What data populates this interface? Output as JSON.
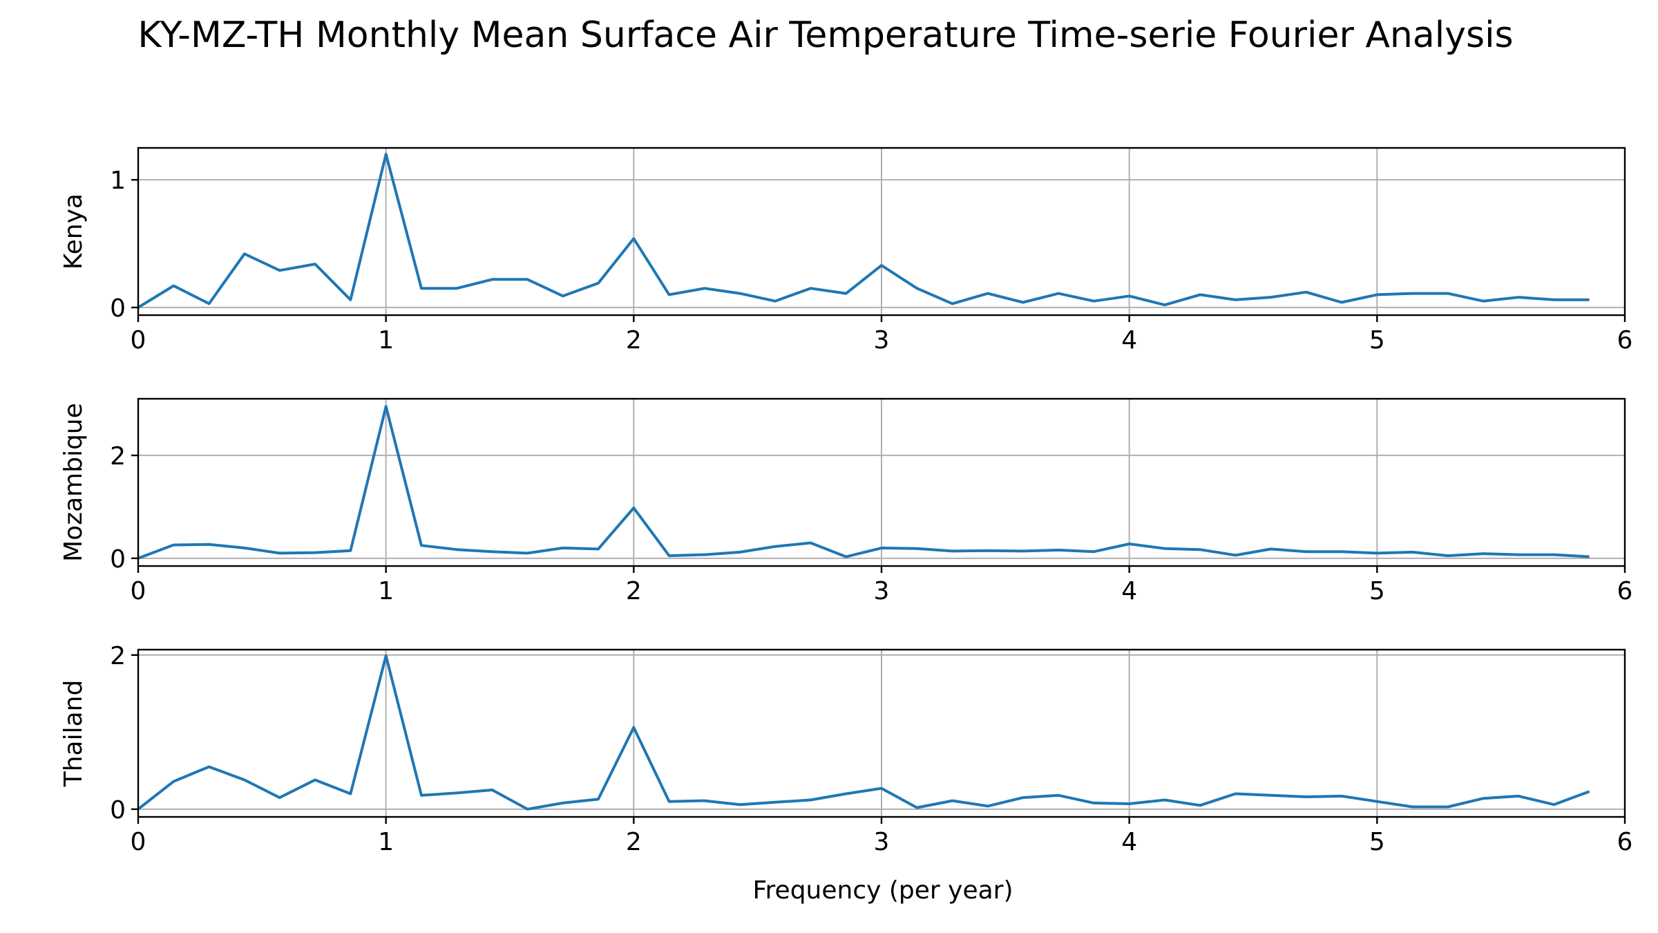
{
  "title": "KY-MZ-TH Monthly Mean Surface Air Temperature Time-serie Fourier Analysis",
  "xlabel": "Frequency (per year)",
  "colors": {
    "line": "#1f77b4",
    "grid": "#b0b0b0",
    "axes": "#000000"
  },
  "chart_data": [
    {
      "type": "line",
      "ylabel": "Kenya",
      "xlim": [
        0,
        6
      ],
      "ylim": [
        -0.06,
        1.25
      ],
      "xticks": [
        0,
        1,
        2,
        3,
        4,
        5,
        6
      ],
      "yticks": [
        0,
        1
      ],
      "grid": true,
      "x": [
        0,
        0.143,
        0.286,
        0.429,
        0.571,
        0.714,
        0.857,
        1.0,
        1.143,
        1.286,
        1.429,
        1.571,
        1.714,
        1.857,
        2.0,
        2.143,
        2.286,
        2.429,
        2.571,
        2.714,
        2.857,
        3.0,
        3.143,
        3.286,
        3.429,
        3.571,
        3.714,
        3.857,
        4.0,
        4.143,
        4.286,
        4.429,
        4.571,
        4.714,
        4.857,
        5.0,
        5.143,
        5.286,
        5.429,
        5.571,
        5.714,
        5.857
      ],
      "series": [
        {
          "values": [
            0.0,
            0.17,
            0.03,
            0.42,
            0.29,
            0.34,
            0.06,
            1.2,
            0.15,
            0.15,
            0.22,
            0.22,
            0.09,
            0.19,
            0.54,
            0.1,
            0.15,
            0.11,
            0.05,
            0.15,
            0.11,
            0.33,
            0.15,
            0.03,
            0.11,
            0.04,
            0.11,
            0.05,
            0.09,
            0.02,
            0.1,
            0.06,
            0.08,
            0.12,
            0.04,
            0.1,
            0.11,
            0.11,
            0.05,
            0.08,
            0.06,
            0.06
          ]
        }
      ]
    },
    {
      "type": "line",
      "ylabel": "Mozambique",
      "xlim": [
        0,
        6
      ],
      "ylim": [
        -0.15,
        3.1
      ],
      "xticks": [
        0,
        1,
        2,
        3,
        4,
        5,
        6
      ],
      "yticks": [
        0,
        2
      ],
      "grid": true,
      "x": [
        0,
        0.143,
        0.286,
        0.429,
        0.571,
        0.714,
        0.857,
        1.0,
        1.143,
        1.286,
        1.429,
        1.571,
        1.714,
        1.857,
        2.0,
        2.143,
        2.286,
        2.429,
        2.571,
        2.714,
        2.857,
        3.0,
        3.143,
        3.286,
        3.429,
        3.571,
        3.714,
        3.857,
        4.0,
        4.143,
        4.286,
        4.429,
        4.571,
        4.714,
        4.857,
        5.0,
        5.143,
        5.286,
        5.429,
        5.571,
        5.714,
        5.857
      ],
      "series": [
        {
          "values": [
            0.0,
            0.26,
            0.27,
            0.2,
            0.1,
            0.11,
            0.15,
            2.95,
            0.25,
            0.17,
            0.13,
            0.1,
            0.2,
            0.18,
            0.98,
            0.05,
            0.07,
            0.12,
            0.23,
            0.3,
            0.03,
            0.2,
            0.19,
            0.14,
            0.15,
            0.14,
            0.16,
            0.13,
            0.28,
            0.19,
            0.17,
            0.06,
            0.18,
            0.13,
            0.13,
            0.1,
            0.12,
            0.05,
            0.09,
            0.07,
            0.07,
            0.03
          ]
        }
      ]
    },
    {
      "type": "line",
      "ylabel": "Thailand",
      "xlim": [
        0,
        6
      ],
      "ylim": [
        -0.1,
        2.07
      ],
      "xticks": [
        0,
        1,
        2,
        3,
        4,
        5,
        6
      ],
      "yticks": [
        0,
        2
      ],
      "grid": true,
      "x": [
        0,
        0.143,
        0.286,
        0.429,
        0.571,
        0.714,
        0.857,
        1.0,
        1.143,
        1.286,
        1.429,
        1.571,
        1.714,
        1.857,
        2.0,
        2.143,
        2.286,
        2.429,
        2.571,
        2.714,
        2.857,
        3.0,
        3.143,
        3.286,
        3.429,
        3.571,
        3.714,
        3.857,
        4.0,
        4.143,
        4.286,
        4.429,
        4.571,
        4.714,
        4.857,
        5.0,
        5.143,
        5.286,
        5.429,
        5.571,
        5.714,
        5.857
      ],
      "series": [
        {
          "values": [
            0.0,
            0.36,
            0.55,
            0.38,
            0.15,
            0.38,
            0.2,
            1.99,
            0.18,
            0.21,
            0.25,
            0.0,
            0.08,
            0.13,
            1.06,
            0.1,
            0.11,
            0.06,
            0.09,
            0.12,
            0.2,
            0.27,
            0.02,
            0.11,
            0.04,
            0.15,
            0.18,
            0.08,
            0.07,
            0.12,
            0.05,
            0.2,
            0.18,
            0.16,
            0.17,
            0.1,
            0.03,
            0.03,
            0.14,
            0.17,
            0.06,
            0.23
          ]
        }
      ]
    }
  ]
}
